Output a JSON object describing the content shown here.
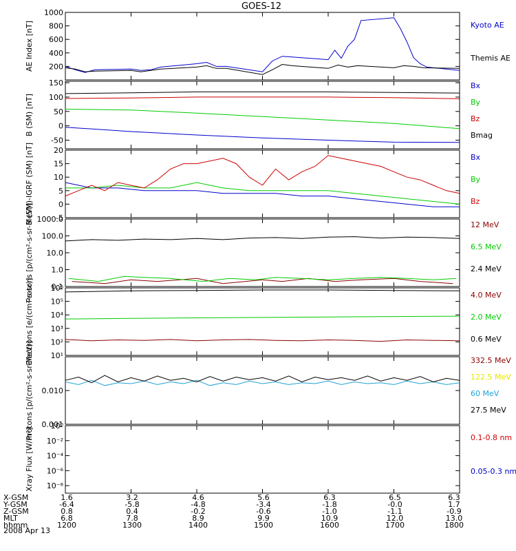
{
  "title": "GOES-12",
  "date": "2008 Apr 13",
  "palette": {
    "black": "#000000",
    "blue": "#0000cc",
    "red": "#cc0000",
    "green": "#00cc00",
    "darkred": "#8b0000",
    "yellow": "#e6e600",
    "cyan": "#1fa2d6"
  },
  "footer": {
    "rows": [
      {
        "label": "X-GSM",
        "values": [
          "1.6",
          "3.2",
          "4.6",
          "5.6",
          "6.3",
          "6.5",
          "6.3"
        ]
      },
      {
        "label": "Y-GSM",
        "values": [
          "-6.4",
          "-5.8",
          "-4.8",
          "-3.4",
          "-1.8",
          "-0.0",
          "1.7"
        ]
      },
      {
        "label": "Z-GSM",
        "values": [
          "0.8",
          "0.4",
          "-0.2",
          "-0.6",
          "-1.0",
          "-1.1",
          "-0.9"
        ]
      },
      {
        "label": "MLT",
        "values": [
          "6.8",
          "7.8",
          "8.9",
          "9.9",
          "10.9",
          "12.0",
          "13.0"
        ]
      },
      {
        "label": "hhmm",
        "values": [
          "1200",
          "1300",
          "1400",
          "1500",
          "1600",
          "1700",
          "1800"
        ]
      }
    ]
  },
  "chart_data": [
    {
      "type": "line",
      "ylabel": "AE Index [nT]",
      "xlim": [
        1200,
        1800
      ],
      "ylim": [
        0,
        1000
      ],
      "yticks": [
        200,
        400,
        600,
        800,
        1000
      ],
      "ytick_labels": [
        "200",
        "400",
        "600",
        "800",
        "1000"
      ],
      "series": [
        {
          "name": "Kyoto AE",
          "color": "blue",
          "x": [
            1200,
            1215,
            1230,
            1245,
            1300,
            1315,
            1330,
            1345,
            1400,
            1415,
            1430,
            1445,
            1500,
            1515,
            1530,
            1545,
            1600,
            1610,
            1620,
            1630,
            1640,
            1650,
            1700,
            1710,
            1720,
            1730,
            1740,
            1750,
            1800
          ],
          "y": [
            200,
            150,
            110,
            150,
            160,
            140,
            150,
            190,
            240,
            260,
            200,
            200,
            120,
            280,
            350,
            340,
            300,
            440,
            320,
            500,
            600,
            880,
            920,
            760,
            560,
            330,
            240,
            190,
            140
          ]
        },
        {
          "name": "Themis AE",
          "color": "black",
          "x": [
            1200,
            1215,
            1230,
            1245,
            1300,
            1315,
            1330,
            1345,
            1400,
            1415,
            1430,
            1445,
            1500,
            1515,
            1530,
            1545,
            1600,
            1615,
            1630,
            1645,
            1700,
            1715,
            1730,
            1745,
            1800
          ],
          "y": [
            180,
            160,
            120,
            130,
            140,
            120,
            140,
            160,
            190,
            210,
            170,
            170,
            80,
            150,
            230,
            210,
            170,
            220,
            190,
            210,
            180,
            210,
            200,
            180,
            170
          ]
        }
      ]
    },
    {
      "type": "line",
      "ylabel": "B (SM) [nT]",
      "xlim": [
        1200,
        1800
      ],
      "ylim": [
        -80,
        155
      ],
      "yticks": [
        -50,
        0,
        50,
        100,
        150
      ],
      "ytick_labels": [
        "-50",
        "0",
        "50",
        "100",
        "150"
      ],
      "series": [
        {
          "name": "Bx",
          "color": "blue",
          "x": [
            1200,
            1300,
            1400,
            1500,
            1600,
            1700,
            1800
          ],
          "y": [
            -5,
            -20,
            -32,
            -42,
            -50,
            -57,
            -58
          ]
        },
        {
          "name": "By",
          "color": "green",
          "x": [
            1200,
            1300,
            1400,
            1500,
            1600,
            1700,
            1800
          ],
          "y": [
            58,
            55,
            44,
            32,
            20,
            8,
            -10
          ]
        },
        {
          "name": "Bz",
          "color": "red",
          "x": [
            1200,
            1300,
            1400,
            1500,
            1600,
            1700,
            1800
          ],
          "y": [
            95,
            97,
            100,
            100,
            100,
            98,
            94
          ]
        },
        {
          "name": "Bmag",
          "color": "black",
          "x": [
            1200,
            1300,
            1400,
            1500,
            1600,
            1700,
            1800
          ],
          "y": [
            112,
            115,
            118,
            118,
            118,
            116,
            114
          ]
        }
      ]
    },
    {
      "type": "line",
      "ylabel": "B (SM)-IGRF (SM) [nT]",
      "xlim": [
        1200,
        1800
      ],
      "ylim": [
        -5,
        20
      ],
      "yticks": [
        -5,
        0,
        5,
        10,
        15,
        20
      ],
      "ytick_labels": [
        "-5",
        "0",
        "5",
        "10",
        "15",
        "20"
      ],
      "series": [
        {
          "name": "Bx",
          "color": "blue",
          "x": [
            1200,
            1240,
            1280,
            1320,
            1360,
            1400,
            1440,
            1480,
            1520,
            1560,
            1600,
            1640,
            1680,
            1720,
            1760,
            1800
          ],
          "y": [
            8,
            6,
            6,
            5,
            5,
            5,
            4,
            4,
            4,
            3,
            3,
            2,
            1,
            0,
            -1,
            -1
          ]
        },
        {
          "name": "By",
          "color": "green",
          "x": [
            1200,
            1240,
            1280,
            1320,
            1360,
            1400,
            1440,
            1480,
            1520,
            1560,
            1600,
            1640,
            1680,
            1720,
            1760,
            1800
          ],
          "y": [
            6,
            6,
            7,
            6,
            6,
            8,
            6,
            5,
            5,
            5,
            5,
            4,
            3,
            2,
            1,
            0
          ]
        },
        {
          "name": "Bz",
          "color": "red",
          "x": [
            1200,
            1220,
            1240,
            1260,
            1280,
            1300,
            1320,
            1340,
            1360,
            1380,
            1400,
            1420,
            1440,
            1460,
            1480,
            1500,
            1520,
            1540,
            1560,
            1580,
            1600,
            1620,
            1640,
            1660,
            1680,
            1700,
            1720,
            1740,
            1760,
            1780,
            1800
          ],
          "y": [
            3,
            5,
            7,
            5,
            8,
            7,
            6,
            9,
            13,
            15,
            15,
            16,
            17,
            15,
            10,
            7,
            13,
            9,
            12,
            14,
            18,
            17,
            16,
            15,
            14,
            12,
            10,
            9,
            7,
            5,
            4
          ]
        }
      ]
    },
    {
      "type": "line",
      "ylabel": "Protons [p/(cm²-s-sr-MeV)]",
      "xlim": [
        1200,
        1800
      ],
      "ylim": [
        0.1,
        1000
      ],
      "yscale": "log",
      "yticks": [
        0.1,
        1,
        10,
        100,
        1000
      ],
      "ytick_labels": [
        "0.1",
        "1.0",
        "10.0",
        "100.0",
        "1000.0"
      ],
      "series": [
        {
          "name": "12 MeV",
          "color": "darkred",
          "x": [
            1210,
            1260,
            1300,
            1340,
            1400,
            1440,
            1500,
            1530,
            1570,
            1610,
            1650,
            1700,
            1740,
            1790
          ],
          "y": [
            0.2,
            0.15,
            0.25,
            0.2,
            0.3,
            0.15,
            0.25,
            0.2,
            0.3,
            0.2,
            0.25,
            0.3,
            0.2,
            0.15
          ]
        },
        {
          "name": "6.5 MeV",
          "color": "green",
          "x": [
            1205,
            1250,
            1290,
            1320,
            1360,
            1410,
            1450,
            1490,
            1520,
            1560,
            1600,
            1640,
            1680,
            1720,
            1760,
            1795
          ],
          "y": [
            0.3,
            0.2,
            0.4,
            0.35,
            0.3,
            0.2,
            0.3,
            0.25,
            0.35,
            0.3,
            0.25,
            0.3,
            0.35,
            0.3,
            0.25,
            0.3
          ]
        },
        {
          "name": "2.4 MeV",
          "color": "black",
          "x": [
            1200,
            1240,
            1280,
            1320,
            1360,
            1400,
            1440,
            1480,
            1520,
            1560,
            1600,
            1640,
            1680,
            1720,
            1760,
            1800
          ],
          "y": [
            50,
            60,
            55,
            65,
            60,
            70,
            60,
            75,
            80,
            70,
            85,
            90,
            75,
            85,
            80,
            70
          ]
        }
      ]
    },
    {
      "type": "line",
      "ylabel": "Electrons [e/(cm²-s-sr)]",
      "xlim": [
        1200,
        1800
      ],
      "ylim": [
        10,
        1000000
      ],
      "yscale": "log",
      "yticks": [
        10,
        100,
        1000,
        10000,
        100000,
        1000000
      ],
      "ytick_labels": [
        "10¹",
        "10²",
        "10³",
        "10⁴",
        "10⁵",
        "10⁶"
      ],
      "series": [
        {
          "name": "4.0 MeV",
          "color": "darkred",
          "x": [
            1200,
            1240,
            1280,
            1320,
            1360,
            1400,
            1440,
            1480,
            1520,
            1560,
            1600,
            1640,
            1680,
            1720,
            1760,
            1800
          ],
          "y": [
            150,
            120,
            140,
            130,
            150,
            120,
            140,
            150,
            130,
            120,
            140,
            130,
            110,
            140,
            130,
            120
          ]
        },
        {
          "name": "2.0 MeV",
          "color": "green",
          "x": [
            1200,
            1300,
            1400,
            1500,
            1600,
            1700,
            1800
          ],
          "y": [
            5000,
            5500,
            6000,
            6500,
            7000,
            7500,
            8000
          ]
        },
        {
          "name": "0.6 MeV",
          "color": "black",
          "x": [
            1200,
            1300,
            1400,
            1500,
            1600,
            1700,
            1800
          ],
          "y": [
            500000,
            600000,
            650000,
            700000,
            700000,
            650000,
            600000
          ]
        }
      ]
    },
    {
      "type": "line",
      "ylabel": "Protons [p/(cm²-s-sr-MeV)]",
      "xlim": [
        1200,
        1800
      ],
      "ylim": [
        0.001,
        0.1
      ],
      "yscale": "log",
      "yticks": [
        0.001,
        0.01
      ],
      "ytick_labels": [
        "0.001",
        "0.010"
      ],
      "series": [
        {
          "name": "332.5 MeV",
          "color": "darkred",
          "x": [],
          "y": []
        },
        {
          "name": "122.5 MeV",
          "color": "yellow",
          "x": [],
          "y": []
        },
        {
          "name": "60 MeV",
          "color": "cyan",
          "x": [
            1200,
            1220,
            1240,
            1260,
            1280,
            1300,
            1320,
            1340,
            1360,
            1380,
            1400,
            1420,
            1440,
            1460,
            1480,
            1500,
            1520,
            1540,
            1560,
            1580,
            1600,
            1620,
            1640,
            1660,
            1680,
            1700,
            1720,
            1740,
            1760,
            1780,
            1800
          ],
          "y": [
            0.018,
            0.015,
            0.02,
            0.014,
            0.017,
            0.016,
            0.019,
            0.015,
            0.018,
            0.016,
            0.02,
            0.014,
            0.017,
            0.015,
            0.019,
            0.016,
            0.018,
            0.015,
            0.017,
            0.016,
            0.019,
            0.015,
            0.018,
            0.016,
            0.017,
            0.015,
            0.019,
            0.016,
            0.018,
            0.015,
            0.017
          ]
        },
        {
          "name": "27.5 MeV",
          "color": "black",
          "x": [
            1200,
            1220,
            1240,
            1260,
            1280,
            1300,
            1320,
            1340,
            1360,
            1380,
            1400,
            1420,
            1440,
            1460,
            1480,
            1500,
            1520,
            1540,
            1560,
            1580,
            1600,
            1620,
            1640,
            1660,
            1680,
            1700,
            1720,
            1740,
            1760,
            1780,
            1800
          ],
          "y": [
            0.02,
            0.025,
            0.017,
            0.028,
            0.018,
            0.024,
            0.019,
            0.027,
            0.02,
            0.023,
            0.018,
            0.026,
            0.019,
            0.025,
            0.021,
            0.024,
            0.019,
            0.027,
            0.018,
            0.025,
            0.021,
            0.024,
            0.02,
            0.027,
            0.019,
            0.024,
            0.02,
            0.026,
            0.018,
            0.023,
            0.02
          ]
        }
      ]
    },
    {
      "type": "line",
      "ylabel": "Xray Flux [W/m²]",
      "xlim": [
        1200,
        1800
      ],
      "ylim": [
        1e-09,
        1
      ],
      "yscale": "log",
      "yticks": [
        1e-08,
        1e-06,
        0.0001,
        0.01,
        1
      ],
      "ytick_labels": [
        "10⁻⁸",
        "10⁻⁶",
        "10⁻⁴",
        "10⁻²",
        "10⁰"
      ],
      "series": [
        {
          "name": "0.1-0.8 nm",
          "color": "red",
          "x": [],
          "y": []
        },
        {
          "name": "0.05-0.3 nm",
          "color": "blue",
          "x": [],
          "y": []
        }
      ]
    }
  ]
}
